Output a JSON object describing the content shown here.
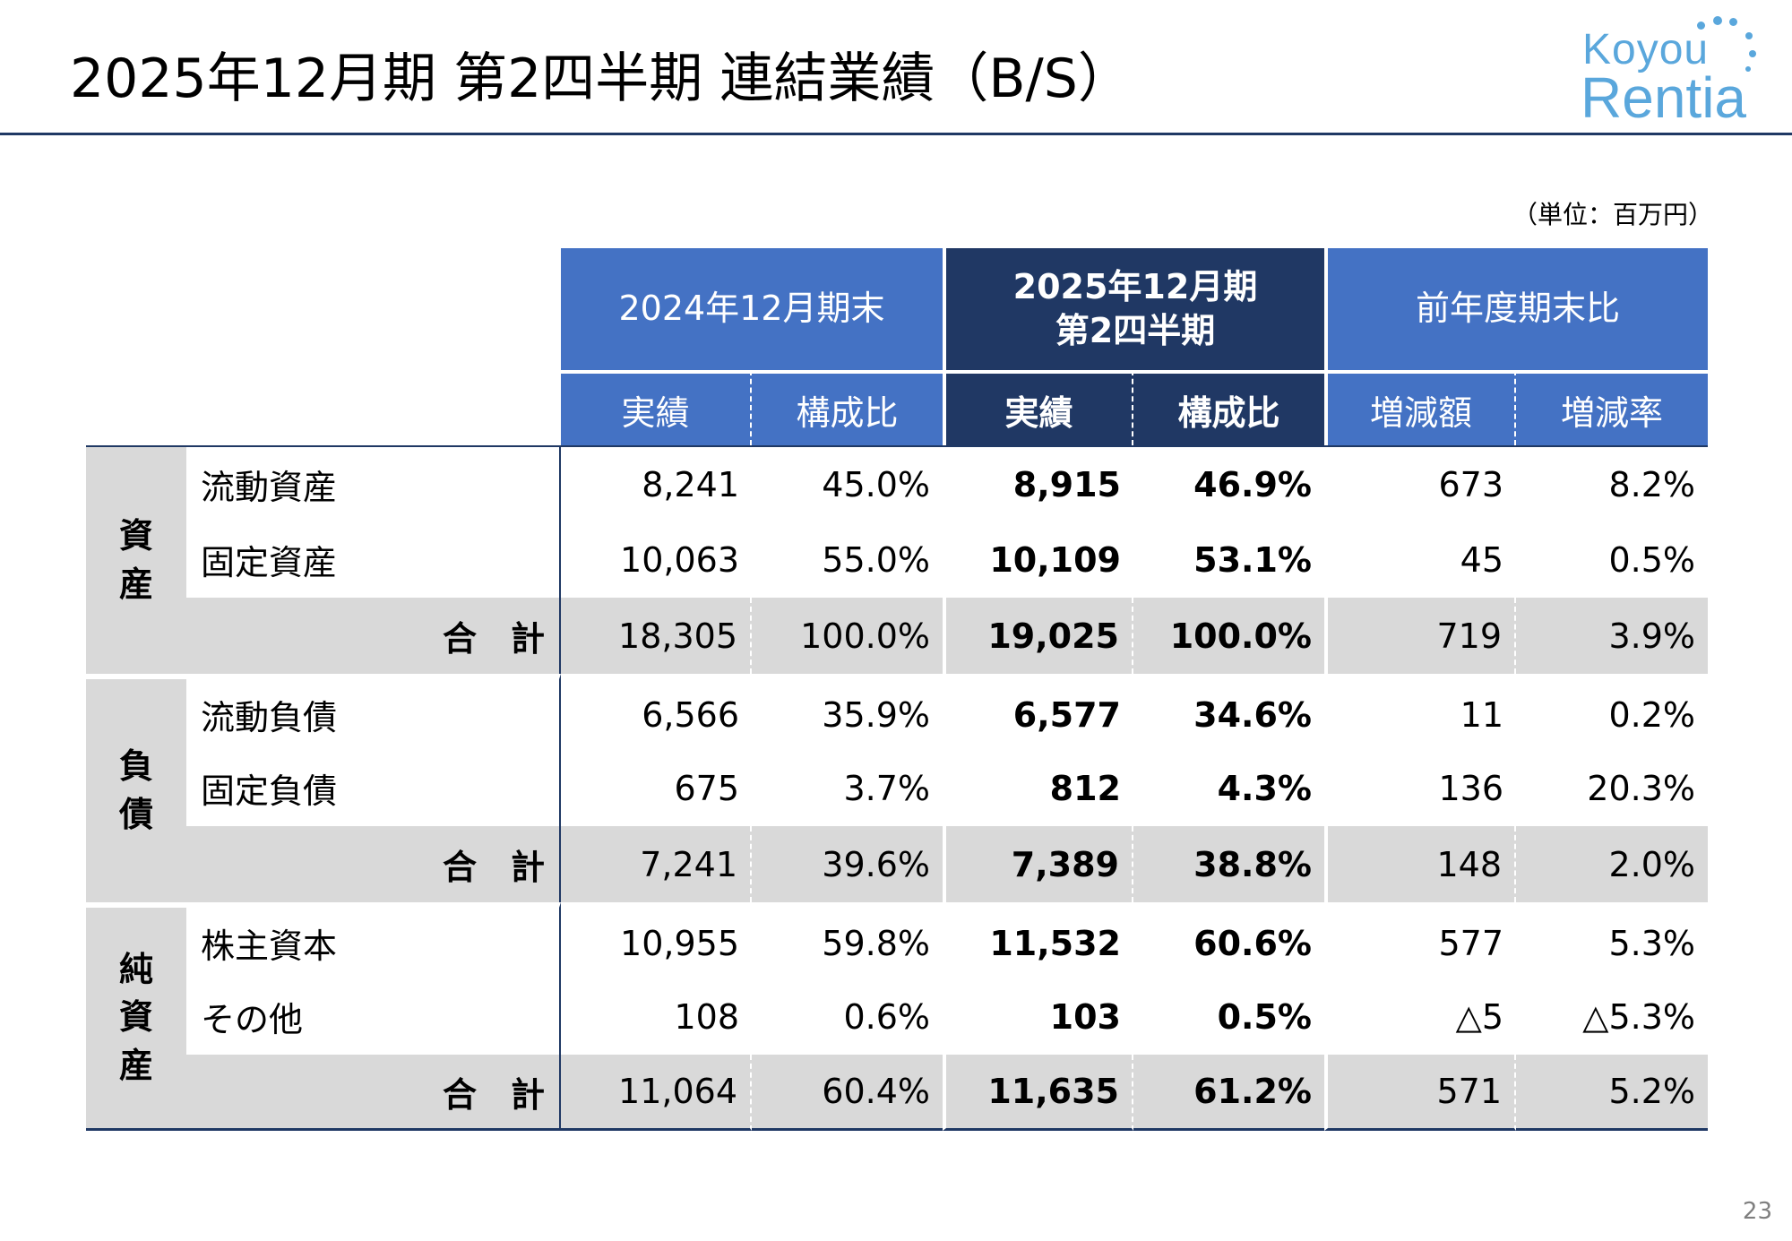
{
  "header": {
    "title": "2025年12月期 第2四半期  連結業績（B/S）",
    "logo_line1": "Koyou",
    "logo_line2": "Rentia",
    "logo_color": "#5aa7dc",
    "unit": "（単位：百万円）"
  },
  "table": {
    "columns": {
      "prev_group": "2024年12月期末",
      "curr_group_line1": "2025年12月期",
      "curr_group_line2": "第2四半期",
      "diff_group": "前年度期末比",
      "prev_actual": "実績",
      "prev_ratio": "構成比",
      "curr_actual": "実績",
      "curr_ratio": "構成比",
      "diff_amount": "増減額",
      "diff_rate": "増減率"
    },
    "total_label": "合　計",
    "groups": [
      {
        "category": "資\n産",
        "rows": [
          {
            "label": "流動資産",
            "prev": "8,241",
            "prev_ratio": "45.0%",
            "curr": "8,915",
            "curr_ratio": "46.9%",
            "diff": "673",
            "rate": "8.2%"
          },
          {
            "label": "固定資産",
            "prev": "10,063",
            "prev_ratio": "55.0%",
            "curr": "10,109",
            "curr_ratio": "53.1%",
            "diff": "45",
            "rate": "0.5%"
          }
        ],
        "total": {
          "prev": "18,305",
          "prev_ratio": "100.0%",
          "curr": "19,025",
          "curr_ratio": "100.0%",
          "diff": "719",
          "rate": "3.9%"
        }
      },
      {
        "category": "負\n債",
        "rows": [
          {
            "label": "流動負債",
            "prev": "6,566",
            "prev_ratio": "35.9%",
            "curr": "6,577",
            "curr_ratio": "34.6%",
            "diff": "11",
            "rate": "0.2%"
          },
          {
            "label": "固定負債",
            "prev": "675",
            "prev_ratio": "3.7%",
            "curr": "812",
            "curr_ratio": "4.3%",
            "diff": "136",
            "rate": "20.3%"
          }
        ],
        "total": {
          "prev": "7,241",
          "prev_ratio": "39.6%",
          "curr": "7,389",
          "curr_ratio": "38.8%",
          "diff": "148",
          "rate": "2.0%"
        }
      },
      {
        "category": "純\n資\n産",
        "rows": [
          {
            "label": "株主資本",
            "prev": "10,955",
            "prev_ratio": "59.8%",
            "curr": "11,532",
            "curr_ratio": "60.6%",
            "diff": "577",
            "rate": "5.3%"
          },
          {
            "label": "その他",
            "prev": "108",
            "prev_ratio": "0.6%",
            "curr": "103",
            "curr_ratio": "0.5%",
            "diff": "△5",
            "rate": "△5.3%"
          }
        ],
        "total": {
          "prev": "11,064",
          "prev_ratio": "60.4%",
          "curr": "11,635",
          "curr_ratio": "61.2%",
          "diff": "571",
          "rate": "5.2%"
        }
      }
    ]
  },
  "page_number": "23"
}
